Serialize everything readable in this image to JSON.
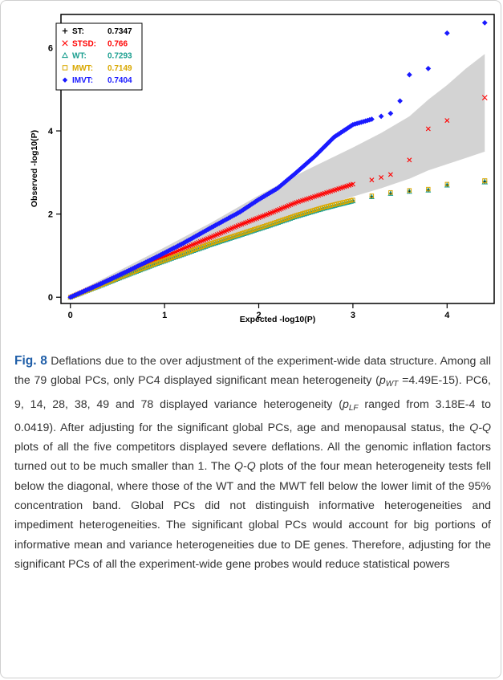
{
  "figure": {
    "label": "Fig. 8",
    "caption_parts": {
      "t1": " Deflations due to the over adjustment of the experiment-wide data structure. Among all the 79 global PCs, only PC4 displayed significant mean heterogeneity (",
      "p1": "p",
      "p1_sub": "WT",
      "t2": " =4.49E-15). PC6, 9, 14, 28, 38, 49 and 78 displayed variance heterogeneity (",
      "p2": "p",
      "p2_sub": "LF",
      "t3": " ranged from 3.18E-4 to 0.0419). After adjusting for the significant global PCs, age and menopausal status, the ",
      "qq1": "Q-Q",
      "t4": " plots of all the five competitors displayed severe deflations. All the genomic inflation factors turned out to be much smaller than 1. The ",
      "qq2": "Q-Q",
      "t5": " plots of the four mean heterogeneity tests fell below the diagonal, where those of the WT and the MWT fell below the lower limit of the 95% concentration band. Global PCs did not distinguish informative heterogeneities and impediment heterogeneities. The significant global PCs would account for big portions of informative mean and variance heterogeneities due to DE genes. Therefore, adjusting for the significant PCs of all the experiment-wide gene probes would reduce statistical powers"
    }
  },
  "chart_data": {
    "type": "scatter",
    "xlabel": "Expected -log10(P)",
    "ylabel": "Observed -log10(P)",
    "xlim": [
      -0.1,
      4.5
    ],
    "ylim": [
      -0.15,
      6.8
    ],
    "x_ticks": [
      0,
      1,
      2,
      3,
      4
    ],
    "y_ticks": [
      0,
      2,
      4,
      6
    ],
    "grid": false,
    "legend_position": "top-left",
    "confidence_band": {
      "color": "#d3d3d3",
      "x": [
        0,
        0.5,
        1.0,
        1.5,
        2.0,
        2.5,
        3.0,
        3.3,
        3.6,
        3.8,
        4.0,
        4.2,
        4.4
      ],
      "upper": [
        0.05,
        0.62,
        1.2,
        1.8,
        2.45,
        3.05,
        3.6,
        3.95,
        4.35,
        4.75,
        5.1,
        5.5,
        5.85
      ],
      "lower": [
        0.0,
        0.42,
        0.85,
        1.25,
        1.68,
        2.05,
        2.42,
        2.62,
        2.85,
        3.05,
        3.2,
        3.35,
        3.5
      ]
    },
    "series": [
      {
        "name": "ST",
        "stat": "0.7347",
        "marker": "plus",
        "color": "#000000",
        "x": [
          0,
          0.3,
          0.6,
          0.9,
          1.2,
          1.5,
          1.8,
          2.1,
          2.4,
          2.7,
          3.0,
          3.2,
          3.4,
          3.6,
          3.8,
          4.0,
          4.4
        ],
        "y": [
          0,
          0.27,
          0.54,
          0.8,
          1.04,
          1.28,
          1.5,
          1.72,
          1.95,
          2.15,
          2.32,
          2.42,
          2.5,
          2.55,
          2.58,
          2.7,
          2.78
        ]
      },
      {
        "name": "STSD",
        "stat": "0.766",
        "marker": "x",
        "color": "#ff0000",
        "x": [
          0,
          0.3,
          0.6,
          0.9,
          1.2,
          1.5,
          1.8,
          2.1,
          2.4,
          2.7,
          3.0,
          3.2,
          3.3,
          3.4,
          3.6,
          3.8,
          4.0,
          4.4
        ],
        "y": [
          0,
          0.29,
          0.6,
          0.88,
          1.17,
          1.45,
          1.74,
          2.0,
          2.28,
          2.5,
          2.72,
          2.82,
          2.88,
          2.95,
          3.3,
          4.05,
          4.25,
          4.8
        ]
      },
      {
        "name": "WT",
        "stat": "0.7293",
        "marker": "triangle",
        "color": "#1a9e8f",
        "x": [
          0,
          0.3,
          0.6,
          0.9,
          1.2,
          1.5,
          1.8,
          2.1,
          2.4,
          2.7,
          3.0,
          3.2,
          3.4,
          3.6,
          3.8,
          4.0,
          4.4
        ],
        "y": [
          0,
          0.26,
          0.53,
          0.79,
          1.03,
          1.27,
          1.49,
          1.71,
          1.94,
          2.14,
          2.31,
          2.41,
          2.49,
          2.54,
          2.57,
          2.69,
          2.77
        ]
      },
      {
        "name": "MWT",
        "stat": "0.7149",
        "marker": "square",
        "color": "#d9a800",
        "x": [
          0,
          0.3,
          0.6,
          0.9,
          1.2,
          1.5,
          1.8,
          2.1,
          2.4,
          2.7,
          3.0,
          3.2,
          3.4,
          3.6,
          3.8,
          4.0,
          4.4
        ],
        "y": [
          0,
          0.27,
          0.55,
          0.81,
          1.05,
          1.3,
          1.52,
          1.74,
          1.97,
          2.17,
          2.34,
          2.44,
          2.52,
          2.57,
          2.6,
          2.72,
          2.8
        ]
      },
      {
        "name": "IMVT",
        "stat": "0.7404",
        "marker": "diamond",
        "color": "#1a1aff",
        "x": [
          0,
          0.3,
          0.6,
          0.9,
          1.2,
          1.5,
          1.8,
          2.0,
          2.2,
          2.4,
          2.6,
          2.8,
          3.0,
          3.2,
          3.3,
          3.4,
          3.5,
          3.6,
          3.8,
          4.0,
          4.4
        ],
        "y": [
          0,
          0.3,
          0.62,
          0.95,
          1.3,
          1.68,
          2.05,
          2.35,
          2.62,
          3.0,
          3.4,
          3.85,
          4.15,
          4.28,
          4.35,
          4.42,
          4.72,
          5.35,
          5.5,
          6.35,
          6.6
        ]
      }
    ]
  }
}
